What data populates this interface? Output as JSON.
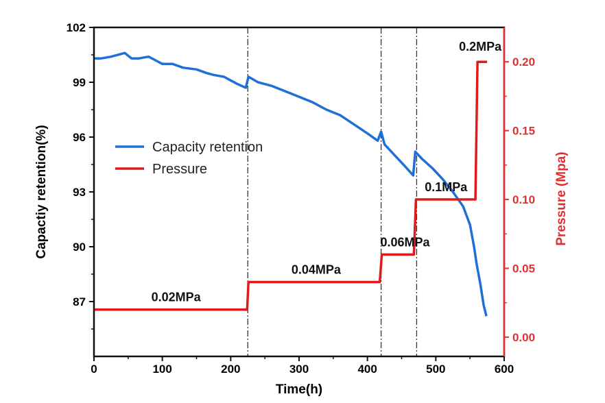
{
  "chart_data": {
    "type": "line",
    "xlabel": "Time(h)",
    "ylabel": "Capactiy retention(%)",
    "y2label": "Pressure (Mpa)",
    "xlim": [
      0,
      600
    ],
    "ylim": [
      84,
      102
    ],
    "y2lim": [
      -0.014,
      0.225
    ],
    "xticks": [
      "0",
      "100",
      "200",
      "300",
      "400",
      "500",
      "600"
    ],
    "yticks": [
      "87",
      "90",
      "93",
      "96",
      "99",
      "102"
    ],
    "y2ticks": [
      "0.00",
      "0.05",
      "0.10",
      "0.15",
      "0.20"
    ],
    "grid": false,
    "legend_position": "center-left",
    "colors": {
      "capacity": "#1f6fd6",
      "pressure": "#e01b1b",
      "right_axis": "#e03030"
    },
    "vlines": [
      225,
      420,
      472
    ],
    "series": [
      {
        "name": "Capacity retention",
        "axis": "left",
        "x": [
          0,
          10,
          25,
          45,
          55,
          65,
          80,
          90,
          100,
          115,
          130,
          150,
          165,
          175,
          190,
          200,
          210,
          222,
          226,
          240,
          260,
          280,
          300,
          320,
          340,
          360,
          380,
          400,
          415,
          420,
          425,
          440,
          455,
          467,
          470,
          480,
          495,
          510,
          525,
          540,
          550,
          556,
          560,
          565,
          570,
          574
        ],
        "y": [
          100.3,
          100.3,
          100.4,
          100.6,
          100.3,
          100.3,
          100.4,
          100.2,
          100.0,
          100.0,
          99.8,
          99.7,
          99.5,
          99.4,
          99.3,
          99.1,
          98.9,
          98.7,
          99.3,
          99.0,
          98.8,
          98.5,
          98.2,
          97.9,
          97.5,
          97.2,
          96.7,
          96.2,
          95.8,
          96.3,
          95.6,
          95.0,
          94.4,
          93.9,
          95.2,
          94.8,
          94.3,
          93.7,
          93.0,
          92.2,
          91.2,
          90.0,
          89.0,
          88.0,
          86.8,
          86.2
        ]
      },
      {
        "name": "Pressure",
        "axis": "right",
        "x": [
          0,
          224,
          226,
          418,
          421,
          468,
          471,
          558,
          561,
          575
        ],
        "y": [
          0.02,
          0.02,
          0.04,
          0.04,
          0.06,
          0.06,
          0.1,
          0.1,
          0.2,
          0.2
        ]
      }
    ],
    "annotations": [
      {
        "text": "0.02MPa",
        "x": 120,
        "y": 0.024
      },
      {
        "text": "0.04MPa",
        "x": 325,
        "y": 0.044
      },
      {
        "text": "0.06MPa",
        "x": 455,
        "y": 0.064
      },
      {
        "text": "0.1MPa",
        "x": 515,
        "y": 0.104
      },
      {
        "text": "0.2MPa",
        "x": 565,
        "y": 0.206
      }
    ]
  }
}
